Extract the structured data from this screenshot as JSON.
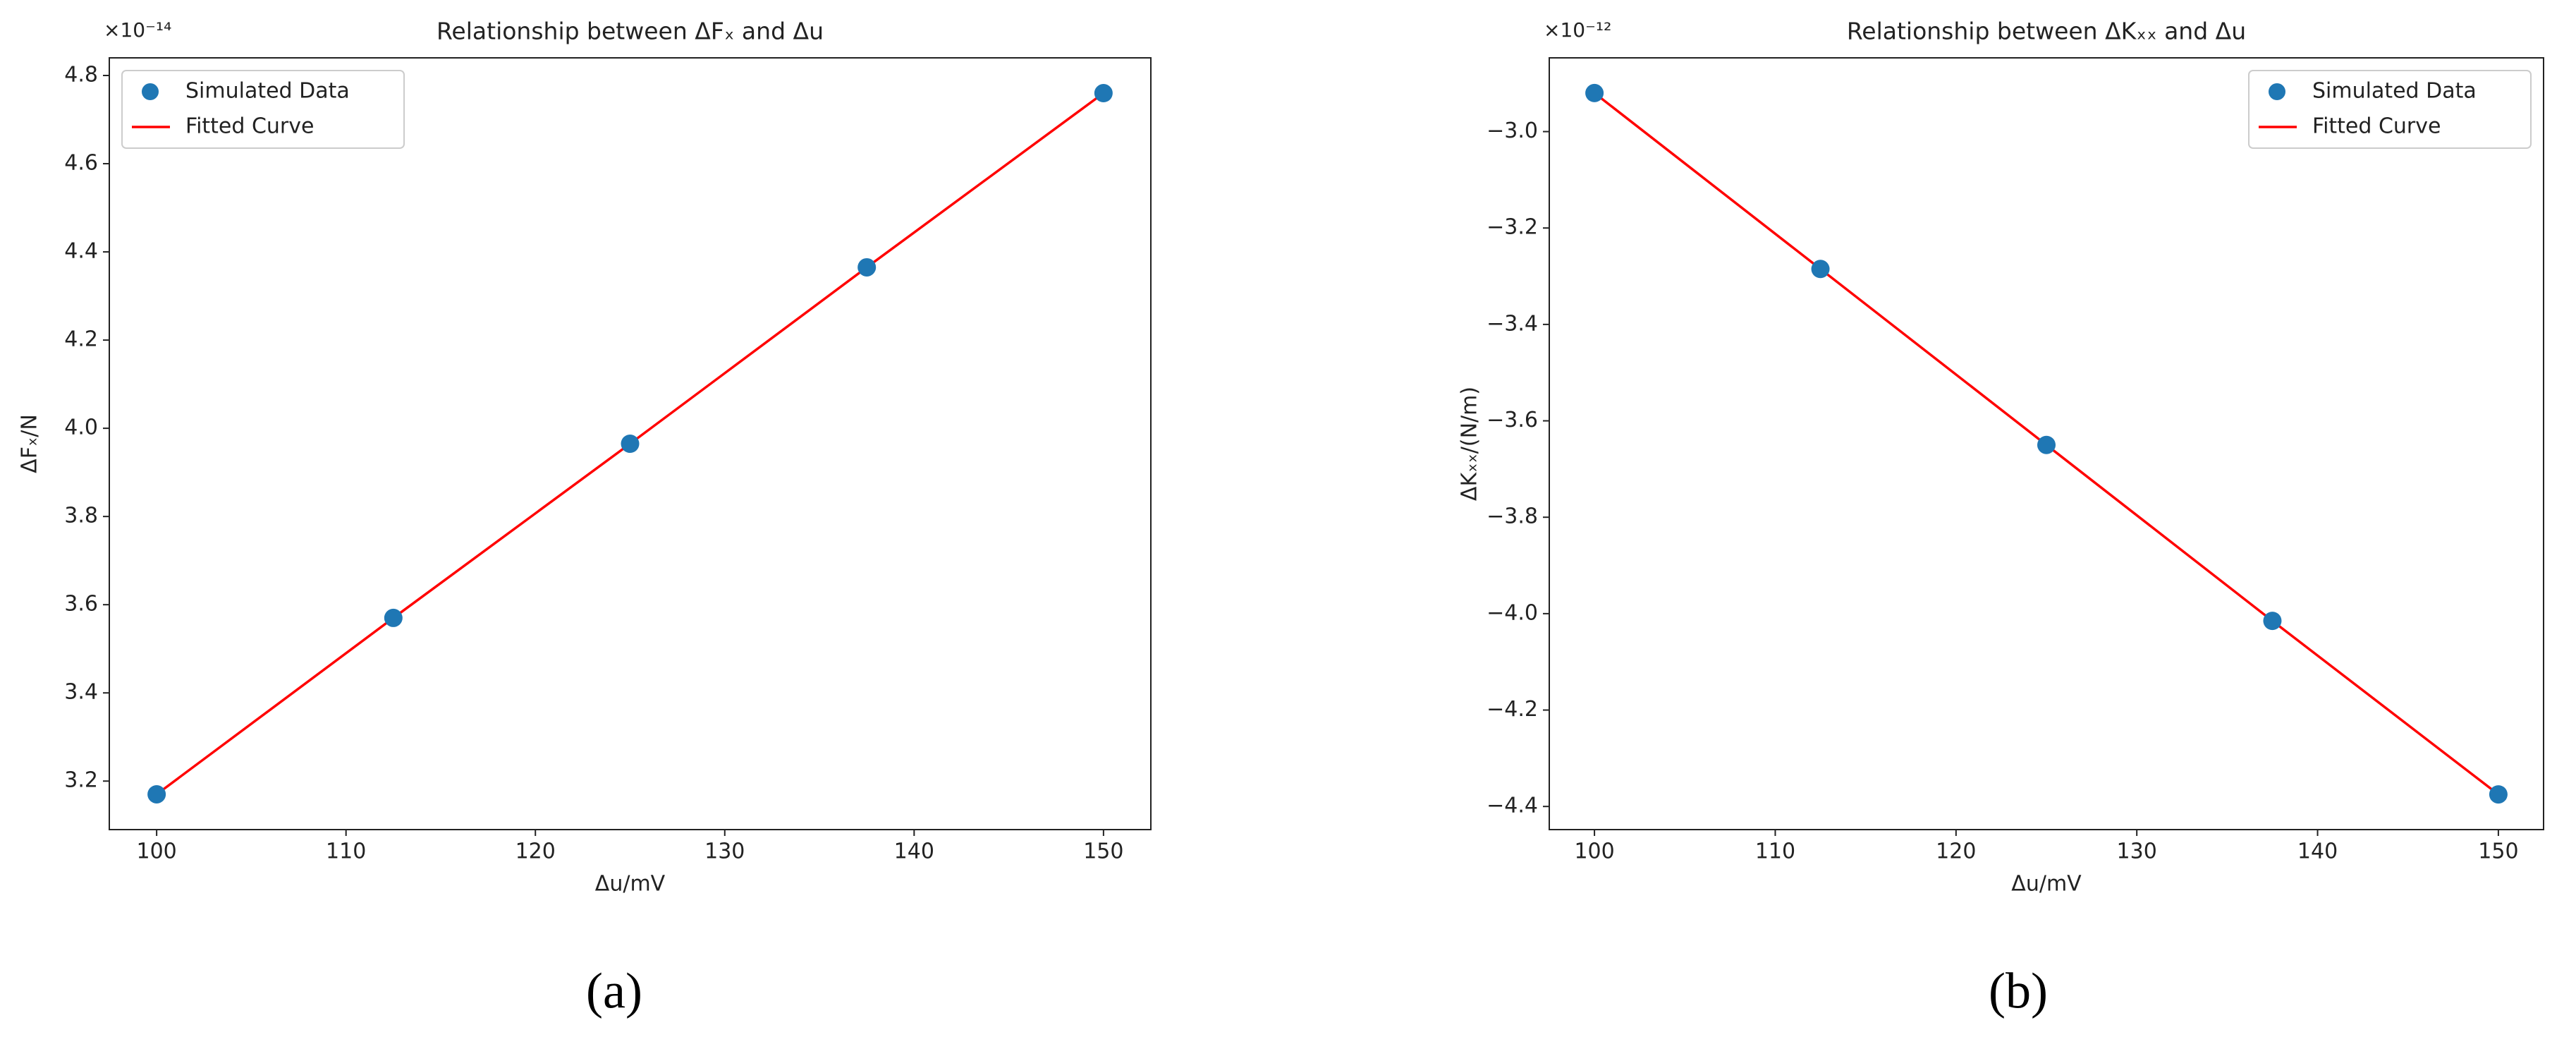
{
  "chart_data": [
    {
      "type": "scatter",
      "panel_label": "(a)",
      "title": "Relationship between ΔFₓ and Δu",
      "x_label": "Δu/mV",
      "y_label": "ΔFₓ/N",
      "y_offset_label": "×10⁻¹⁴",
      "x": [
        100,
        112.5,
        125,
        137.5,
        150
      ],
      "series": [
        {
          "name": "Simulated Data",
          "color": "#1f77b4",
          "style": "points",
          "values": [
            3.17,
            3.57,
            3.965,
            4.365,
            4.76
          ]
        },
        {
          "name": "Fitted Curve",
          "color": "#ff0000",
          "style": "line",
          "values": [
            3.17,
            3.57,
            3.965,
            4.365,
            4.76
          ]
        }
      ],
      "xlim": [
        97.5,
        152.5
      ],
      "xticks": [
        100,
        110,
        120,
        130,
        140,
        150
      ],
      "ylim": [
        3.09,
        4.84
      ],
      "yticks": [
        3.2,
        3.4,
        3.6,
        3.8,
        {
          "value": 4.0,
          "label": "4.0"
        },
        4.2,
        4.4,
        4.6,
        4.8
      ],
      "legend": "upper left"
    },
    {
      "type": "scatter",
      "panel_label": "(b)",
      "title": "Relationship between ΔKₓₓ and Δu",
      "x_label": "Δu/mV",
      "y_label": "ΔKₓₓ/(N/m)",
      "y_offset_label": "×10⁻¹²",
      "x": [
        100,
        112.5,
        125,
        137.5,
        150
      ],
      "series": [
        {
          "name": "Simulated Data",
          "color": "#1f77b4",
          "style": "points",
          "values": [
            -2.92,
            -3.285,
            -3.65,
            -4.015,
            -4.375
          ]
        },
        {
          "name": "Fitted Curve",
          "color": "#ff0000",
          "style": "line",
          "values": [
            -2.92,
            -3.285,
            -3.65,
            -4.015,
            -4.375
          ]
        }
      ],
      "xlim": [
        97.5,
        152.5
      ],
      "xticks": [
        100,
        110,
        120,
        130,
        140,
        150
      ],
      "ylim": [
        -4.448,
        -2.847
      ],
      "yticks": [
        {
          "value": -3.0,
          "label": "−3.0"
        },
        {
          "value": -3.2,
          "label": "−3.2"
        },
        {
          "value": -3.4,
          "label": "−3.4"
        },
        {
          "value": -3.6,
          "label": "−3.6"
        },
        {
          "value": -3.8,
          "label": "−3.8"
        },
        {
          "value": -4.0,
          "label": "−4.0"
        },
        {
          "value": -4.2,
          "label": "−4.2"
        },
        {
          "value": -4.4,
          "label": "−4.4"
        }
      ],
      "legend": "upper right"
    }
  ]
}
